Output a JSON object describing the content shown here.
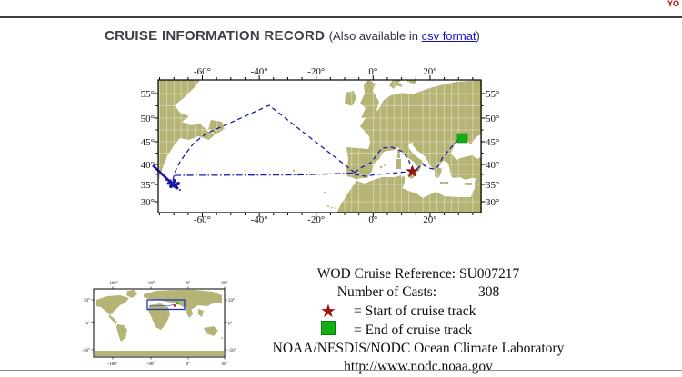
{
  "header": {
    "top_right_fragment": "YO",
    "title": "CRUISE INFORMATION RECORD",
    "also_prefix": "(Also available in ",
    "csv_link": "csv format",
    "also_suffix": ")"
  },
  "main_map": {
    "x_labels": [
      "-60°",
      "-40°",
      "-20°",
      "0°",
      "20°"
    ],
    "y_labels": [
      "55°",
      "50°",
      "45°",
      "40°",
      "35°",
      "30°"
    ],
    "land_color": "#b5b474",
    "ocean_color": "#ffffff",
    "track_color": "#1c1ca8",
    "start_color": "#a01010",
    "end_color": "#12ad12"
  },
  "inset_map": {
    "x_labels": [
      "-180°",
      "-90°",
      "0°",
      "90°"
    ],
    "y_labels": [
      "50°",
      "0°",
      "-50°"
    ],
    "region_box_color": "#2233bb"
  },
  "info": {
    "ref_label": "WOD Cruise Reference:",
    "ref_value": "SU007217",
    "casts_label": "Number of Casts:",
    "casts_value": "308",
    "start_text": "= Start of cruise track",
    "end_text": "= End of cruise track",
    "org": "NOAA/NESDIS/NODC Ocean Climate Laboratory",
    "url": "http://www.nodc.noaa.gov"
  }
}
